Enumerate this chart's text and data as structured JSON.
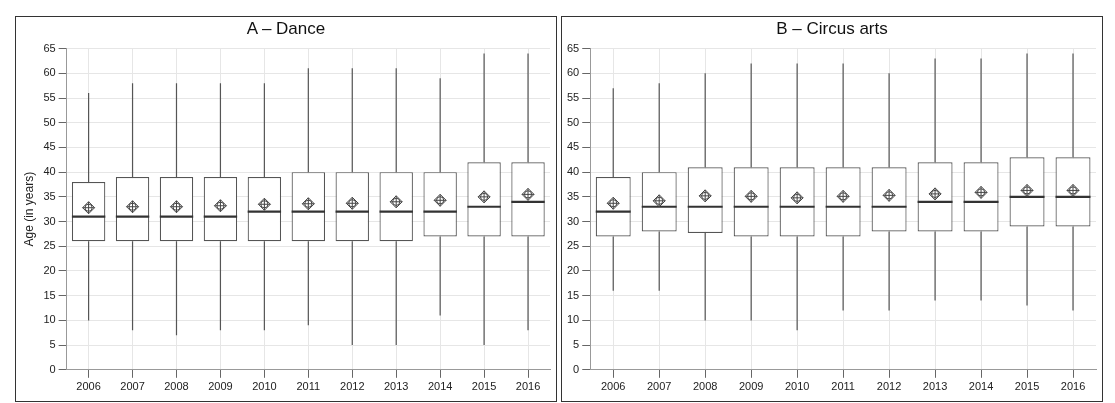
{
  "chart_data": [
    {
      "type": "box",
      "title": "A – Dance",
      "ylabel": "Age (in years)",
      "categories": [
        "2006",
        "2007",
        "2008",
        "2009",
        "2010",
        "2011",
        "2012",
        "2013",
        "2014",
        "2015",
        "2016"
      ],
      "ylim": [
        0,
        65
      ],
      "yticks": [
        0,
        5,
        10,
        15,
        20,
        25,
        30,
        35,
        40,
        45,
        50,
        55,
        60,
        65
      ],
      "grid": true,
      "marker": "diamond",
      "boxes": [
        {
          "low": 10,
          "q1": 26,
          "median": 31,
          "q3": 38,
          "high": 56,
          "mean": 32.8
        },
        {
          "low": 8,
          "q1": 26,
          "median": 31,
          "q3": 39,
          "high": 58,
          "mean": 33
        },
        {
          "low": 7,
          "q1": 26,
          "median": 31,
          "q3": 39,
          "high": 58,
          "mean": 33
        },
        {
          "low": 8,
          "q1": 26,
          "median": 31,
          "q3": 39,
          "high": 58,
          "mean": 33.2
        },
        {
          "low": 8,
          "q1": 26,
          "median": 32,
          "q3": 39,
          "high": 58,
          "mean": 33.5
        },
        {
          "low": 9,
          "q1": 26,
          "median": 32,
          "q3": 40,
          "high": 61,
          "mean": 33.6
        },
        {
          "low": 5,
          "q1": 26,
          "median": 32,
          "q3": 40,
          "high": 61,
          "mean": 33.7
        },
        {
          "low": 5,
          "q1": 26,
          "median": 32,
          "q3": 40,
          "high": 61,
          "mean": 34
        },
        {
          "low": 11,
          "q1": 27,
          "median": 32,
          "q3": 40,
          "high": 59,
          "mean": 34.3
        },
        {
          "low": 5,
          "q1": 27,
          "median": 33,
          "q3": 42,
          "high": 64,
          "mean": 35
        },
        {
          "low": 8,
          "q1": 27,
          "median": 34,
          "q3": 42,
          "high": 64,
          "mean": 35.5
        }
      ]
    },
    {
      "type": "box",
      "title": "B – Circus arts",
      "categories": [
        "2006",
        "2007",
        "2008",
        "2009",
        "2010",
        "2011",
        "2012",
        "2013",
        "2014",
        "2015",
        "2016"
      ],
      "ylim": [
        0,
        65
      ],
      "yticks": [
        0,
        5,
        10,
        15,
        20,
        25,
        30,
        35,
        40,
        45,
        50,
        55,
        60,
        65
      ],
      "grid": true,
      "marker": "diamond",
      "boxes": [
        {
          "low": 16,
          "q1": 27,
          "median": 32,
          "q3": 39,
          "high": 57,
          "mean": 33.7
        },
        {
          "low": 16,
          "q1": 28,
          "median": 33,
          "q3": 40,
          "high": 58,
          "mean": 34.2
        },
        {
          "low": 10,
          "q1": 27.7,
          "median": 33,
          "q3": 41,
          "high": 60,
          "mean": 35.2
        },
        {
          "low": 10,
          "q1": 27,
          "median": 33,
          "q3": 41,
          "high": 62,
          "mean": 35.1
        },
        {
          "low": 8,
          "q1": 27,
          "median": 33,
          "q3": 41,
          "high": 62,
          "mean": 34.8
        },
        {
          "low": 12,
          "q1": 27,
          "median": 33,
          "q3": 41,
          "high": 62,
          "mean": 35.1
        },
        {
          "low": 12,
          "q1": 28,
          "median": 33,
          "q3": 41,
          "high": 60,
          "mean": 35.3
        },
        {
          "low": 14,
          "q1": 28,
          "median": 34,
          "q3": 42,
          "high": 63,
          "mean": 35.6
        },
        {
          "low": 14,
          "q1": 28,
          "median": 34,
          "q3": 42,
          "high": 63,
          "mean": 35.9
        },
        {
          "low": 13,
          "q1": 29,
          "median": 35,
          "q3": 43,
          "high": 64,
          "mean": 36.3
        },
        {
          "low": 12,
          "q1": 29,
          "median": 35,
          "q3": 43,
          "high": 64,
          "mean": 36.3
        }
      ]
    }
  ]
}
